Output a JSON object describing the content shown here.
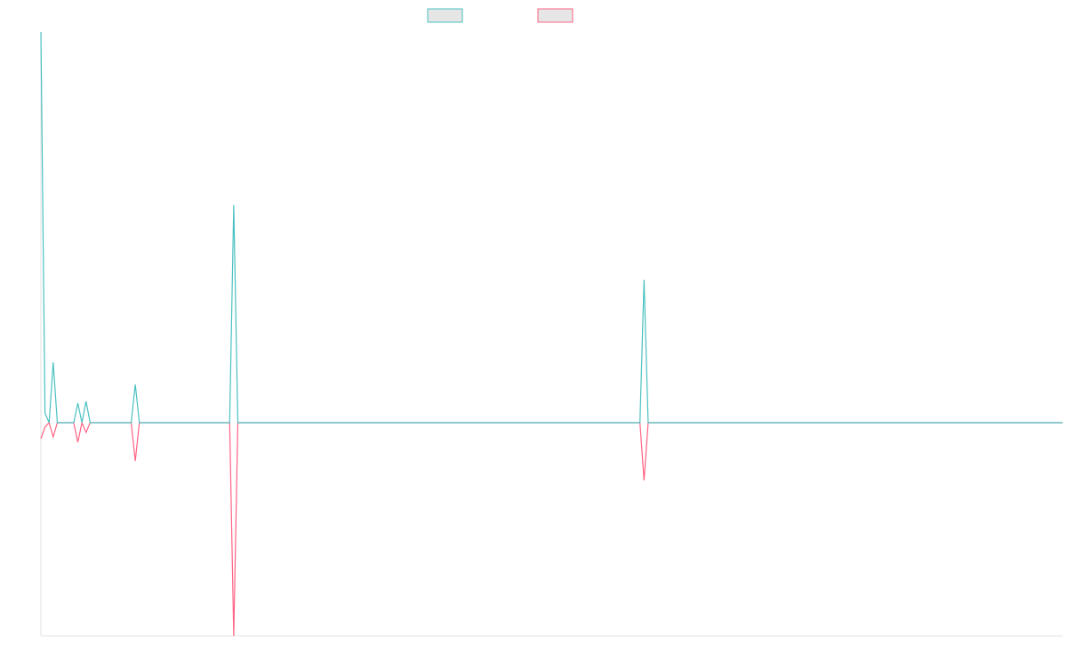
{
  "chart_data": {
    "type": "line",
    "ylim": [
      -240,
      440
    ],
    "series": [
      {
        "color": "#4bc0c0",
        "values": [
          440,
          11,
          0,
          68,
          0,
          0,
          0,
          0,
          0,
          22,
          0,
          24,
          0,
          0,
          0,
          0,
          0,
          0,
          0,
          0,
          0,
          0,
          0,
          43,
          0,
          0,
          0,
          0,
          0,
          0,
          0,
          0,
          0,
          0,
          0,
          0,
          0,
          0,
          0,
          0,
          0,
          0,
          0,
          0,
          0,
          0,
          0,
          245,
          0,
          0,
          0,
          0,
          0,
          0,
          0,
          0,
          0,
          0,
          0,
          0,
          0,
          0,
          0,
          0,
          0,
          0,
          0,
          0,
          0,
          0,
          0,
          0,
          0,
          0,
          0,
          0,
          0,
          0,
          0,
          0,
          0,
          0,
          0,
          0,
          0,
          0,
          0,
          0,
          0,
          0,
          0,
          0,
          0,
          0,
          0,
          0,
          0,
          0,
          0,
          0,
          0,
          0,
          0,
          0,
          0,
          0,
          0,
          0,
          0,
          0,
          0,
          0,
          0,
          0,
          0,
          0,
          0,
          0,
          0,
          0,
          0,
          0,
          0,
          0,
          0,
          0,
          0,
          0,
          0,
          0,
          0,
          0,
          0,
          0,
          0,
          0,
          0,
          0,
          0,
          0,
          0,
          0,
          0,
          0,
          0,
          0,
          0,
          161,
          0,
          0,
          0,
          0,
          0,
          0,
          0,
          0,
          0,
          0,
          0,
          0,
          0,
          0,
          0,
          0,
          0,
          0,
          0,
          0,
          0,
          0,
          0,
          0,
          0,
          0,
          0,
          0,
          0,
          0,
          0,
          0,
          0,
          0,
          0,
          0,
          0,
          0,
          0,
          0,
          0,
          0,
          0,
          0,
          0,
          0,
          0,
          0,
          0,
          0,
          0,
          0,
          0,
          0,
          0,
          0,
          0,
          0,
          0,
          0,
          0,
          0,
          0,
          0,
          0,
          0,
          0,
          0,
          0,
          0,
          0,
          0,
          0,
          0,
          0,
          0,
          0,
          0,
          0,
          0,
          0,
          0,
          0,
          0,
          0,
          0,
          0,
          0,
          0,
          0,
          0,
          0,
          0,
          0,
          0,
          0,
          0,
          0,
          0,
          0,
          0,
          0
        ]
      },
      {
        "color": "#ff6384",
        "values": [
          -18,
          -5,
          0,
          -16,
          0,
          0,
          0,
          0,
          0,
          -22,
          0,
          -11,
          0,
          0,
          0,
          0,
          0,
          0,
          0,
          0,
          0,
          0,
          0,
          -43,
          0,
          0,
          0,
          0,
          0,
          0,
          0,
          0,
          0,
          0,
          0,
          0,
          0,
          0,
          0,
          0,
          0,
          0,
          0,
          0,
          0,
          0,
          0,
          -240,
          0,
          0,
          0,
          0,
          0,
          0,
          0,
          0,
          0,
          0,
          0,
          0,
          0,
          0,
          0,
          0,
          0,
          0,
          0,
          0,
          0,
          0,
          0,
          0,
          0,
          0,
          0,
          0,
          0,
          0,
          0,
          0,
          0,
          0,
          0,
          0,
          0,
          0,
          0,
          0,
          0,
          0,
          0,
          0,
          0,
          0,
          0,
          0,
          0,
          0,
          0,
          0,
          0,
          0,
          0,
          0,
          0,
          0,
          0,
          0,
          0,
          0,
          0,
          0,
          0,
          0,
          0,
          0,
          0,
          0,
          0,
          0,
          0,
          0,
          0,
          0,
          0,
          0,
          0,
          0,
          0,
          0,
          0,
          0,
          0,
          0,
          0,
          0,
          0,
          0,
          0,
          0,
          0,
          0,
          0,
          0,
          0,
          0,
          0,
          -65,
          0,
          0,
          0,
          0,
          0,
          0,
          0,
          0,
          0,
          0,
          0,
          0,
          0,
          0,
          0,
          0,
          0,
          0,
          0,
          0,
          0,
          0,
          0,
          0,
          0,
          0,
          0,
          0,
          0,
          0,
          0,
          0,
          0,
          0,
          0,
          0,
          0,
          0,
          0,
          0,
          0,
          0,
          0,
          0,
          0,
          0,
          0,
          0,
          0,
          0,
          0,
          0,
          0,
          0,
          0,
          0,
          0,
          0,
          0,
          0,
          0,
          0,
          0,
          0,
          0,
          0,
          0,
          0,
          0,
          0,
          0,
          0,
          0,
          0,
          0,
          0,
          0,
          0,
          0,
          0,
          0,
          0,
          0,
          0,
          0,
          0,
          0,
          0,
          0,
          0,
          0,
          0,
          0,
          0,
          0,
          0,
          0,
          0,
          0,
          0,
          0,
          0
        ]
      }
    ]
  }
}
